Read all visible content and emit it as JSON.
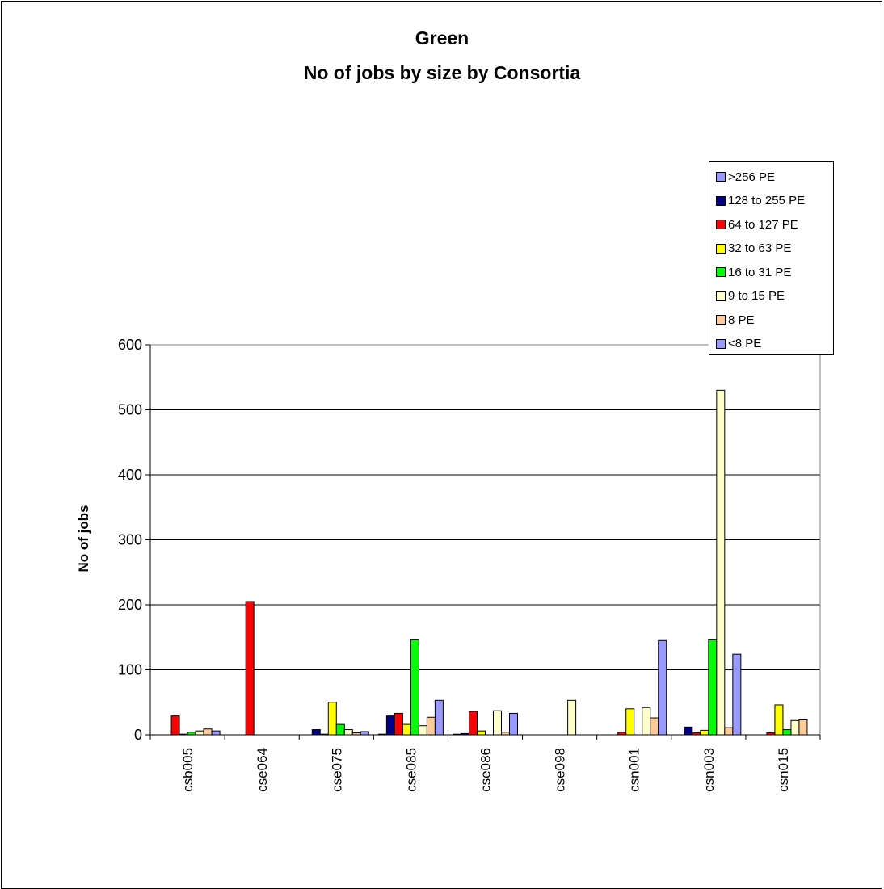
{
  "chart_data": {
    "type": "bar",
    "title": "Green",
    "subtitle": "No of jobs by size by Consortia",
    "xlabel": "",
    "ylabel": "No of jobs",
    "ylim": [
      0,
      600
    ],
    "yticks": [
      0,
      100,
      200,
      300,
      400,
      500,
      600
    ],
    "grid": true,
    "legend_position": "top-right",
    "categories": [
      "csb005",
      "cse064",
      "cse075",
      "cse085",
      "cse086",
      "cse098",
      "csn001",
      "csn003",
      "csn015"
    ],
    "series": [
      {
        "name": ">256 PE",
        "color": "#9999FF",
        "values": [
          0,
          0,
          0,
          1,
          1,
          0,
          0,
          0,
          0
        ]
      },
      {
        "name": "128 to 255 PE",
        "color": "#000080",
        "values": [
          0,
          0,
          8,
          29,
          2,
          0,
          0,
          12,
          0
        ]
      },
      {
        "name": "64 to 127 PE",
        "color": "#FF0000",
        "values": [
          29,
          205,
          1,
          33,
          36,
          0,
          4,
          3,
          3
        ]
      },
      {
        "name": "32 to 63 PE",
        "color": "#FFFF00",
        "values": [
          1,
          0,
          50,
          16,
          6,
          0,
          40,
          7,
          46
        ]
      },
      {
        "name": "16 to 31 PE",
        "color": "#00FF00",
        "values": [
          4,
          0,
          16,
          146,
          0,
          0,
          0,
          146,
          8
        ]
      },
      {
        "name": "9 to 15 PE",
        "color": "#FFFFCC",
        "values": [
          6,
          0,
          8,
          14,
          37,
          53,
          42,
          530,
          22
        ]
      },
      {
        "name": "8 PE",
        "color": "#FFCC99",
        "values": [
          9,
          0,
          3,
          27,
          4,
          0,
          26,
          11,
          23
        ]
      },
      {
        "name": "<8 PE",
        "color": "#9999FF",
        "values": [
          6,
          0,
          5,
          53,
          33,
          0,
          145,
          124,
          0
        ]
      }
    ]
  }
}
